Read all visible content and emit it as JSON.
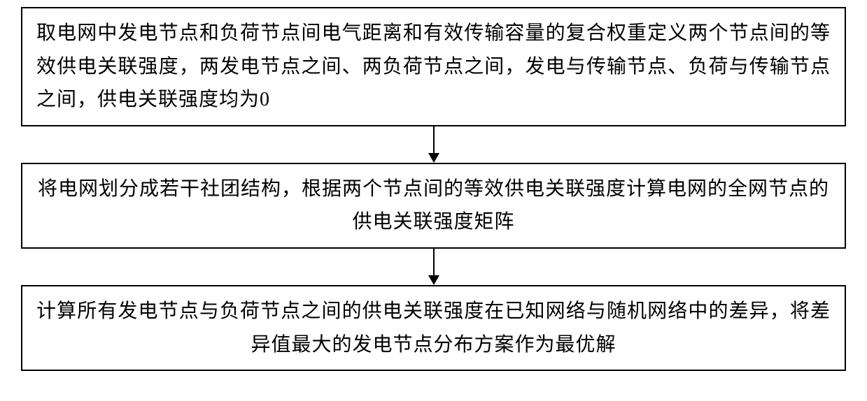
{
  "flowchart": {
    "type": "flowchart",
    "direction": "vertical",
    "background_color": "#ffffff",
    "border_color": "#000000",
    "border_width": 2,
    "text_color": "#000000",
    "font_size": 28,
    "font_family": "SimSun",
    "arrow_color": "#000000",
    "nodes": [
      {
        "id": "step1",
        "text": "取电网中发电节点和负荷节点间电气距离和有效传输容量的复合权重定义两个节点间的等效供电关联强度，两发电节点之间、两负荷节点之间，发电与传输节点、负荷与传输节点之间，供电关联强度均为0",
        "lines": 3,
        "alignment": "justify"
      },
      {
        "id": "step2",
        "text": "将电网划分成若干社团结构，根据两个节点间的等效供电关联强度计算电网的全网节点的供电关联强度矩阵",
        "lines": 2,
        "alignment": "center"
      },
      {
        "id": "step3",
        "text": "计算所有发电节点与负荷节点之间的供电关联强度在已知网络与随机网络中的差异，将差异值最大的发电节点分布方案作为最优解",
        "lines": 2,
        "alignment": "justify"
      }
    ],
    "edges": [
      {
        "from": "step1",
        "to": "step2",
        "type": "arrow"
      },
      {
        "from": "step2",
        "to": "step3",
        "type": "arrow"
      }
    ]
  }
}
